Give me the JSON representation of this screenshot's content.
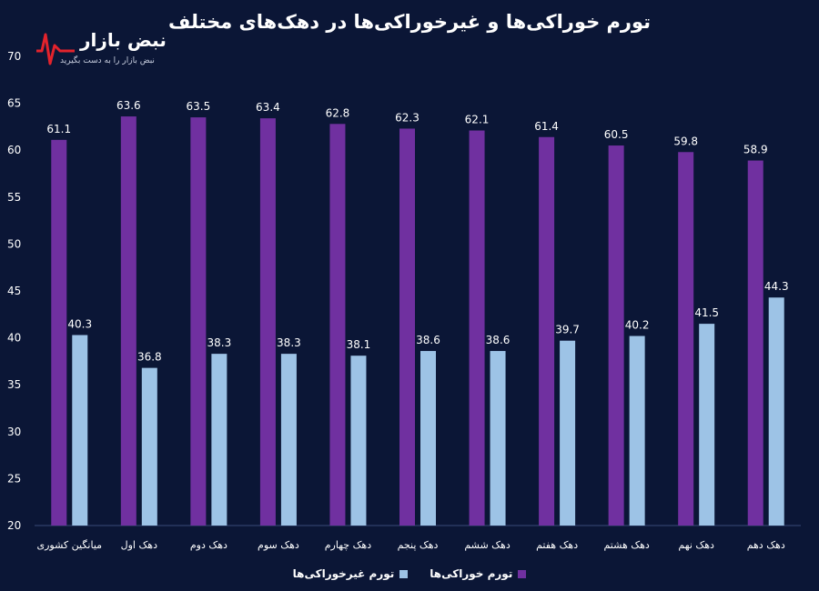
{
  "chart_data": {
    "type": "bar",
    "title": "تورم خوراکی‌ها و غیرخوراکی‌ها در دهک‌های مختلف",
    "categories": [
      "میانگین کشوری",
      "دهک اول",
      "دهک دوم",
      "دهک سوم",
      "دهک چهارم",
      "دهک پنجم",
      "دهک ششم",
      "دهک هفتم",
      "دهک هشتم",
      "دهک نهم",
      "دهک دهم"
    ],
    "series": [
      {
        "name": "تورم خوراکی‌ها",
        "color": "#7030a0",
        "values": [
          61.1,
          63.6,
          63.5,
          63.4,
          62.8,
          62.3,
          62.1,
          61.4,
          60.5,
          59.8,
          58.9
        ]
      },
      {
        "name": "تورم غیرخوراکی‌ها",
        "color": "#9dc3e6",
        "values": [
          40.3,
          36.8,
          38.3,
          38.3,
          38.1,
          38.6,
          38.6,
          39.7,
          40.2,
          41.5,
          44.3
        ]
      }
    ],
    "ylim": [
      20,
      70
    ],
    "yticks": [
      20,
      25,
      30,
      35,
      40,
      45,
      50,
      55,
      60,
      65,
      70
    ],
    "xlabel": "",
    "ylabel": "",
    "legend": "bottom"
  },
  "logo": {
    "name": "نبض بازار",
    "tagline": "نبض بازار را به دست بگیرید",
    "accent_color": "#e3232c"
  }
}
